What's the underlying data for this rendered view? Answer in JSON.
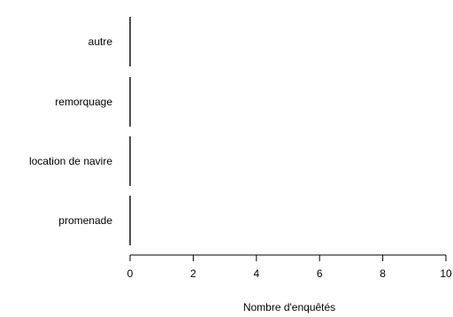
{
  "chart_data": {
    "type": "bar",
    "orientation": "horizontal",
    "categories": [
      "promenade",
      "location de navire",
      "remorquage",
      "autre"
    ],
    "values": [
      0,
      0,
      0,
      0
    ],
    "xlabel": "Nombre d'enquêtés",
    "ylabel": "",
    "xlim": [
      0,
      10
    ],
    "xticks": [
      0,
      2,
      4,
      6,
      8,
      10
    ],
    "grid": false,
    "legend": "none",
    "colors": {
      "axis": "#000000",
      "bar": "#000000",
      "background": "#ffffff"
    }
  }
}
